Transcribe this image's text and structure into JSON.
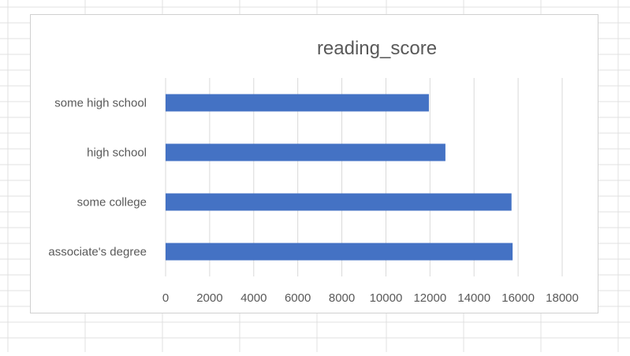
{
  "spreadsheet": {
    "gridline_color": "#e0e0e0"
  },
  "chart_data": {
    "type": "bar",
    "orientation": "horizontal",
    "title": "reading_score",
    "categories": [
      "some high school",
      "high school",
      "some college",
      "associate's degree"
    ],
    "values": [
      11950,
      12700,
      15700,
      15750
    ],
    "xlim": [
      0,
      18000
    ],
    "xticks": [
      "0",
      "2000",
      "4000",
      "6000",
      "8000",
      "10000",
      "12000",
      "14000",
      "16000",
      "18000"
    ],
    "grid": true,
    "legend": "none",
    "bar_color": "#4472c4",
    "grid_color": "#d9d9d9",
    "title_color": "#595959",
    "label_color": "#595959"
  }
}
